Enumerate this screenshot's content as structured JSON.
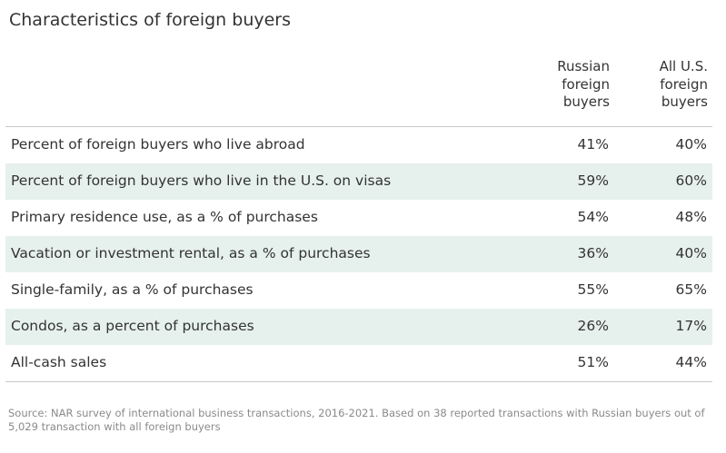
{
  "title": "Characteristics of foreign buyers",
  "columns": [
    {
      "lines": [
        "Russian",
        "foreign",
        "buyers"
      ]
    },
    {
      "lines": [
        "All U.S.",
        "foreign",
        "buyers"
      ]
    }
  ],
  "chart_data": {
    "type": "table",
    "title": "Characteristics of foreign buyers",
    "columns": [
      "Russian foreign buyers",
      "All U.S. foreign buyers"
    ],
    "rows": [
      {
        "label": "Percent of foreign buyers who live abroad",
        "values": [
          "41%",
          "40%"
        ]
      },
      {
        "label": "Percent of foreign buyers who live in the U.S. on visas",
        "values": [
          "59%",
          "60%"
        ]
      },
      {
        "label": "Primary residence use, as a % of purchases",
        "values": [
          "54%",
          "48%"
        ]
      },
      {
        "label": "Vacation or investment rental, as a % of purchases",
        "values": [
          "36%",
          "40%"
        ]
      },
      {
        "label": "Single-family, as a % of purchases",
        "values": [
          "55%",
          "65%"
        ]
      },
      {
        "label": "Condos, as a percent of purchases",
        "values": [
          "26%",
          "17%"
        ]
      },
      {
        "label": "All-cash sales",
        "values": [
          "51%",
          "44%"
        ]
      }
    ],
    "row_striping": true,
    "stripe_color": "#e6f1ee"
  },
  "source": "Source: NAR survey of international business transactions, 2016-2021. Based on 38 reported transactions with Russian buyers out of 5,029 transaction with all foreign buyers"
}
